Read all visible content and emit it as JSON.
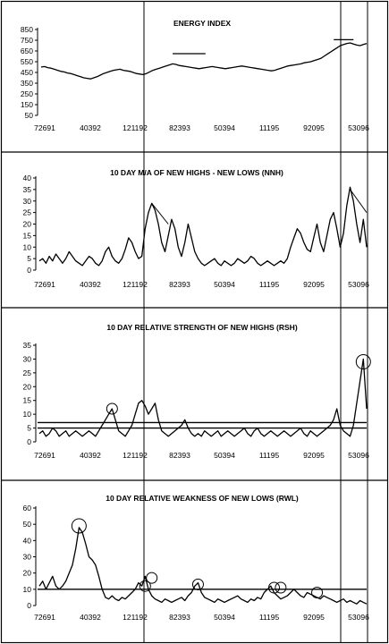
{
  "chart_data": [
    {
      "type": "line",
      "title": "ENERGY INDEX",
      "yticks": [
        850,
        750,
        650,
        550,
        450,
        350,
        250,
        150,
        50
      ],
      "ylim": [
        50,
        850
      ],
      "xtick_labels": [
        "72691",
        "40392",
        "121192",
        "82393",
        "50394",
        "11195",
        "92095",
        "53096"
      ],
      "series": [
        {
          "values": [
            500,
            505,
            495,
            490,
            480,
            470,
            460,
            455,
            445,
            440,
            430,
            420,
            410,
            400,
            395,
            390,
            400,
            410,
            425,
            440,
            450,
            460,
            470,
            475,
            480,
            470,
            465,
            460,
            450,
            440,
            435,
            430,
            440,
            455,
            470,
            480,
            490,
            500,
            510,
            520,
            530,
            525,
            515,
            510,
            505,
            500,
            495,
            490,
            485,
            490,
            495,
            500,
            505,
            500,
            495,
            490,
            485,
            490,
            495,
            500,
            505,
            510,
            505,
            500,
            495,
            490,
            485,
            480,
            475,
            470,
            465,
            470,
            480,
            490,
            500,
            510,
            515,
            520,
            525,
            530,
            540,
            545,
            550,
            560,
            570,
            580,
            600,
            620,
            640,
            660,
            680,
            700,
            710,
            720,
            725,
            715,
            705,
            700,
            710,
            720
          ]
        }
      ],
      "reference_lines": [
        {
          "y": 625,
          "from_index": 40,
          "to_index": 50
        },
        {
          "y": 755,
          "from_index": 89,
          "to_index": 95
        }
      ]
    },
    {
      "type": "line",
      "title": "10 DAY M/A OF NEW HIGHS - NEW LOWS (NNH)",
      "yticks": [
        40,
        35,
        30,
        25,
        20,
        15,
        10,
        5,
        0
      ],
      "ylim": [
        0,
        40
      ],
      "xtick_labels": [
        "72691",
        "40392",
        "121192",
        "82393",
        "50394",
        "11195",
        "92095",
        "53096"
      ],
      "series": [
        {
          "values": [
            4,
            5,
            3,
            6,
            4,
            7,
            5,
            3,
            5,
            8,
            6,
            4,
            3,
            2,
            4,
            6,
            5,
            3,
            2,
            4,
            8,
            10,
            6,
            4,
            3,
            5,
            9,
            14,
            12,
            8,
            5,
            6,
            18,
            25,
            29,
            26,
            20,
            12,
            8,
            15,
            22,
            18,
            10,
            6,
            12,
            20,
            14,
            8,
            5,
            3,
            2,
            3,
            4,
            5,
            3,
            2,
            4,
            3,
            2,
            3,
            5,
            4,
            3,
            4,
            6,
            5,
            3,
            2,
            3,
            4,
            3,
            2,
            3,
            4,
            3,
            5,
            10,
            14,
            18,
            16,
            12,
            9,
            8,
            14,
            20,
            12,
            8,
            15,
            22,
            25,
            18,
            10,
            16,
            28,
            36,
            30,
            20,
            12,
            22,
            10
          ]
        }
      ],
      "reference_lines": [
        {
          "from": [
            34,
            29
          ],
          "to": [
            39,
            20
          ]
        },
        {
          "from": [
            94,
            35
          ],
          "to": [
            99,
            25
          ]
        }
      ]
    },
    {
      "type": "line",
      "title": "10 DAY RELATIVE STRENGTH OF NEW HIGHS (RSH)",
      "yticks": [
        35,
        30,
        25,
        20,
        15,
        10,
        5,
        0
      ],
      "ylim": [
        0,
        35
      ],
      "xtick_labels": [
        "72691",
        "40392",
        "121192",
        "82393",
        "50394",
        "11195",
        "92095",
        "53096"
      ],
      "series": [
        {
          "values": [
            3,
            4,
            2,
            3,
            5,
            4,
            2,
            3,
            4,
            2,
            3,
            4,
            3,
            2,
            3,
            4,
            3,
            2,
            4,
            6,
            8,
            10,
            12,
            8,
            4,
            3,
            2,
            4,
            6,
            10,
            14,
            15,
            13,
            10,
            12,
            14,
            8,
            4,
            3,
            2,
            3,
            4,
            5,
            6,
            8,
            5,
            3,
            2,
            3,
            2,
            4,
            3,
            2,
            3,
            4,
            2,
            3,
            4,
            3,
            2,
            3,
            4,
            5,
            3,
            2,
            4,
            5,
            3,
            2,
            3,
            4,
            3,
            2,
            3,
            4,
            3,
            2,
            3,
            4,
            5,
            3,
            2,
            4,
            3,
            2,
            3,
            4,
            5,
            6,
            8,
            12,
            6,
            4,
            3,
            2,
            6,
            14,
            22,
            30,
            12
          ]
        }
      ],
      "reference_lines": [
        {
          "y": 7
        },
        {
          "y": 5
        }
      ],
      "annotations": [
        {
          "type": "circle",
          "x_index": 22,
          "y": 12
        },
        {
          "type": "circle",
          "x_index": 98,
          "y": 29
        }
      ]
    },
    {
      "type": "line",
      "title": "10 DAY RELATIVE WEAKNESS OF NEW LOWS (RWL)",
      "yticks": [
        60,
        50,
        40,
        30,
        20,
        10,
        0
      ],
      "ylim": [
        0,
        60
      ],
      "xtick_labels": [
        "72691",
        "40392",
        "121192",
        "82393",
        "50394",
        "11195",
        "92095",
        "53096"
      ],
      "series": [
        {
          "values": [
            12,
            15,
            10,
            14,
            18,
            12,
            10,
            12,
            15,
            20,
            25,
            35,
            48,
            45,
            38,
            30,
            28,
            25,
            18,
            10,
            5,
            4,
            6,
            4,
            3,
            5,
            4,
            6,
            8,
            10,
            14,
            12,
            18,
            10,
            6,
            4,
            3,
            2,
            4,
            3,
            2,
            3,
            4,
            5,
            3,
            6,
            8,
            12,
            14,
            8,
            5,
            4,
            3,
            2,
            4,
            3,
            2,
            3,
            4,
            5,
            6,
            4,
            3,
            2,
            4,
            3,
            5,
            4,
            8,
            10,
            12,
            8,
            6,
            4,
            5,
            6,
            8,
            10,
            8,
            6,
            5,
            8,
            7,
            6,
            5,
            4,
            6,
            5,
            4,
            3,
            2,
            3,
            4,
            2,
            3,
            2,
            1,
            3,
            2,
            1
          ]
        }
      ],
      "reference_lines": [
        {
          "y": 10
        }
      ],
      "annotations": [
        {
          "type": "circle",
          "x_index": 12,
          "y": 49
        },
        {
          "type": "circle",
          "x_index": 34,
          "y": 17
        },
        {
          "type": "circle",
          "x_index": 32,
          "y": 12
        },
        {
          "type": "circle",
          "x_index": 48,
          "y": 13
        },
        {
          "type": "circle",
          "x_index": 71,
          "y": 11
        },
        {
          "type": "circle",
          "x_index": 73,
          "y": 11
        },
        {
          "type": "circle",
          "x_index": 84,
          "y": 8
        }
      ]
    }
  ]
}
